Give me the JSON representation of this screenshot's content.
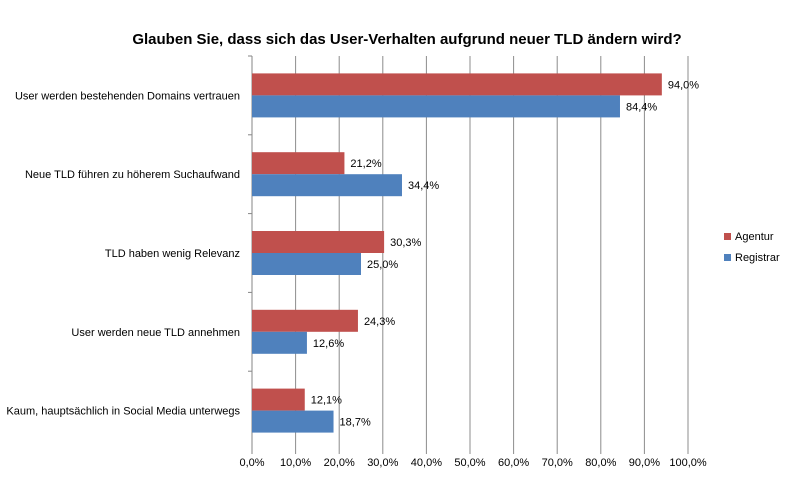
{
  "chart_data": {
    "type": "bar",
    "orientation": "horizontal",
    "title": "Glauben Sie, dass sich das User-Verhalten aufgrund neuer TLD ändern wird?",
    "categories": [
      "User werden bestehenden Domains vertrauen",
      "Neue TLD führen zu höherem Suchaufwand",
      "TLD haben wenig Relevanz",
      "User werden neue TLD annehmen",
      "Kaum, hauptsächlich in Social Media unterwegs"
    ],
    "series": [
      {
        "name": "Agentur",
        "color": "#C0504D",
        "values": [
          94.0,
          21.2,
          30.3,
          24.3,
          12.1
        ],
        "labels": [
          "94,0%",
          "21,2%",
          "30,3%",
          "24,3%",
          "12,1%"
        ]
      },
      {
        "name": "Registrar",
        "color": "#4F81BD",
        "values": [
          84.4,
          34.4,
          25.0,
          12.6,
          18.7
        ],
        "labels": [
          "84,4%",
          "34,4%",
          "25,0%",
          "12,6%",
          "18,7%"
        ]
      }
    ],
    "xlim": [
      0,
      100
    ],
    "x_ticks": [
      0,
      10,
      20,
      30,
      40,
      50,
      60,
      70,
      80,
      90,
      100
    ],
    "x_tick_labels": [
      "0,0%",
      "10,0%",
      "20,0%",
      "30,0%",
      "40,0%",
      "50,0%",
      "60,0%",
      "70,0%",
      "80,0%",
      "90,0%",
      "100,0%"
    ],
    "grid": true,
    "legend_position": "right"
  }
}
